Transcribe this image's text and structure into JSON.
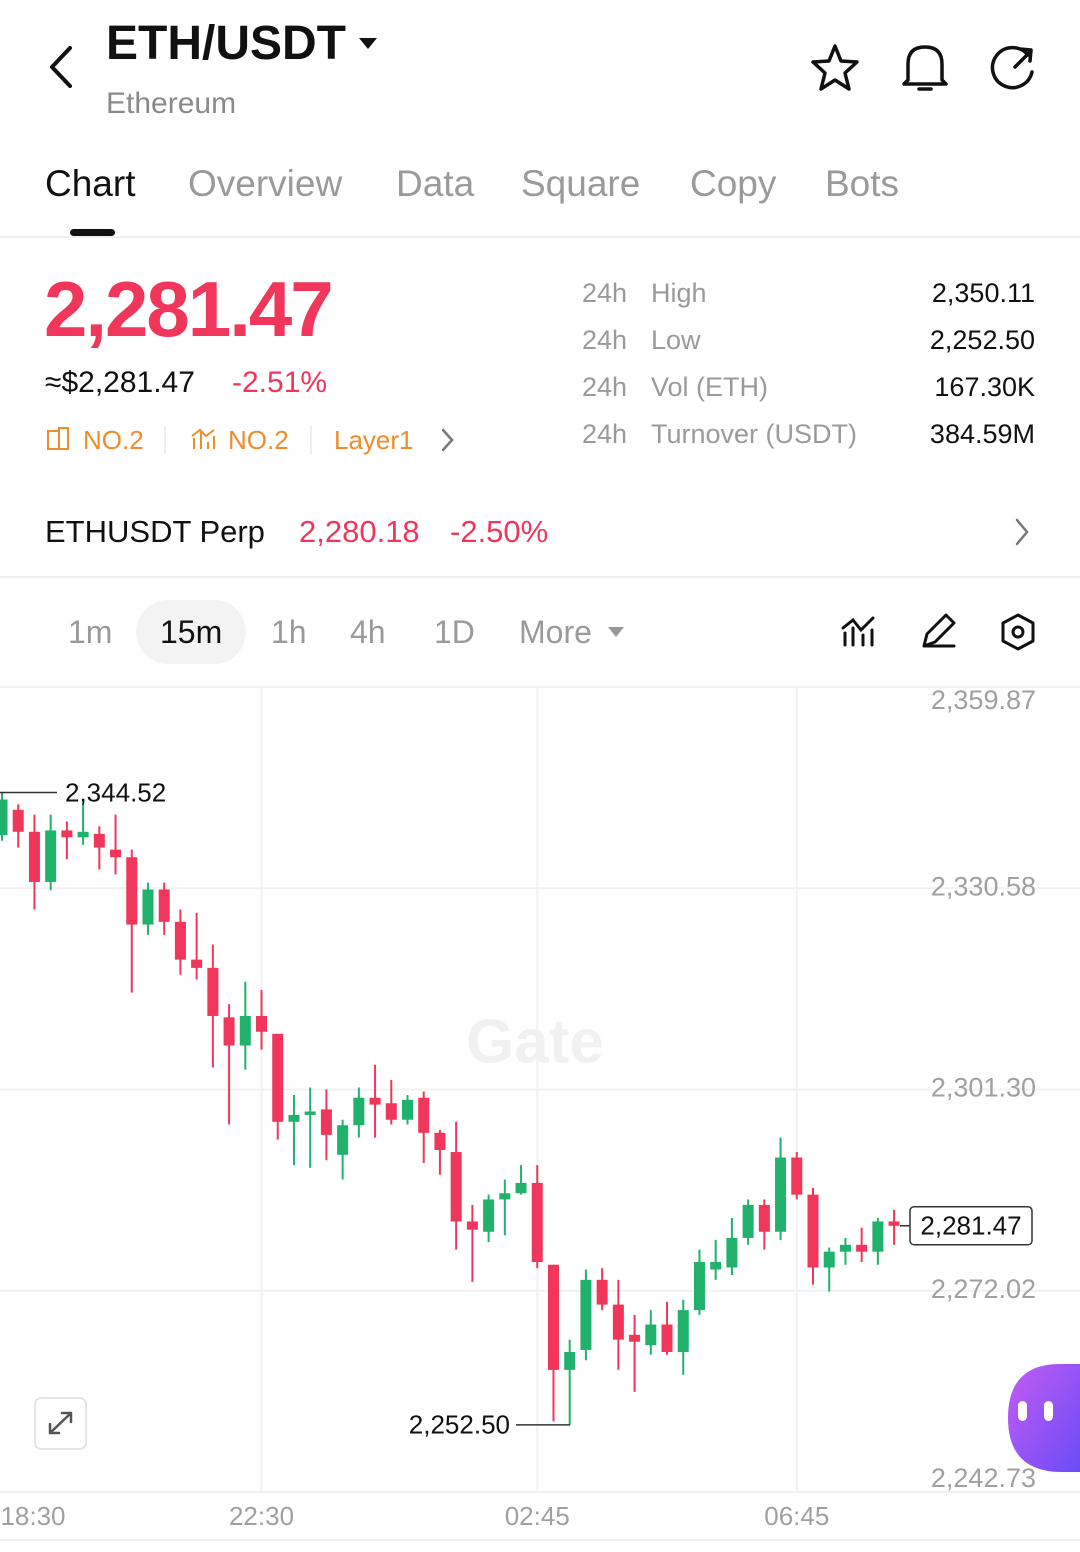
{
  "header": {
    "title": "ETH/USDT",
    "subtitle": "Ethereum"
  },
  "tabs": [
    "Chart",
    "Overview",
    "Data",
    "Square",
    "Copy",
    "Bots"
  ],
  "price": {
    "last": "2,281.47",
    "approx": "≈$2,281.47",
    "change": "-2.51%",
    "tags": [
      "NO.2",
      "NO.2",
      "Layer1"
    ]
  },
  "stats": [
    {
      "period": "24h",
      "label": "High",
      "value": "2,350.11"
    },
    {
      "period": "24h",
      "label": "Low",
      "value": "2,252.50"
    },
    {
      "period": "24h",
      "label": "Vol (ETH)",
      "value": "167.30K"
    },
    {
      "period": "24h",
      "label": "Turnover (USDT)",
      "value": "384.59M"
    }
  ],
  "perp": {
    "name": "ETHUSDT Perp",
    "price": "2,280.18",
    "change": "-2.50%"
  },
  "intervals": [
    "1m",
    "15m",
    "1h",
    "4h",
    "1D",
    "More"
  ],
  "chart_data": {
    "type": "candlestick",
    "watermark": "Gate",
    "up_color": "#20b26c",
    "down_color": "#f0365a",
    "grid": true,
    "categories": [
      "18:30",
      null,
      null,
      null,
      null,
      null,
      null,
      null,
      null,
      null,
      null,
      null,
      null,
      null,
      null,
      null,
      "22:30",
      null,
      null,
      null,
      null,
      null,
      null,
      null,
      null,
      null,
      null,
      null,
      null,
      null,
      null,
      null,
      null,
      "02:45",
      null,
      null,
      null,
      null,
      null,
      null,
      null,
      null,
      null,
      null,
      null,
      null,
      null,
      null,
      null,
      "06:45",
      null,
      null,
      null,
      null,
      null,
      null
    ],
    "open": [
      2338.3,
      2342,
      2338.8,
      2331.5,
      2339,
      2338,
      2338.5,
      2336.2,
      2335.1,
      2325.3,
      2330.4,
      2325.7,
      2320.2,
      2319,
      2311.8,
      2307.7,
      2312,
      2309.4,
      2296.6,
      2297.6,
      2298.4,
      2291.8,
      2296.1,
      2300.1,
      2299.3,
      2296.9,
      2300.1,
      2295,
      2292.2,
      2282.1,
      2280.6,
      2285.3,
      2286.2,
      2287.7,
      2275.8,
      2260.5,
      2263.4,
      2273.6,
      2270,
      2265.6,
      2264.1,
      2267.1,
      2263.1,
      2269.2,
      2275.1,
      2275.4,
      2279.7,
      2284.5,
      2280.6,
      2291.4,
      2286,
      2275.4,
      2277.7,
      2278.7,
      2277.7,
      2282.1
    ],
    "high": [
      2344.52,
      2342.8,
      2341.3,
      2341.3,
      2340.3,
      2343.5,
      2339.6,
      2341.3,
      2336.2,
      2331.4,
      2331.4,
      2327.5,
      2327,
      2322.4,
      2313.7,
      2317,
      2315.8,
      2309.4,
      2300.5,
      2301.6,
      2301.3,
      2296.9,
      2301.6,
      2304.9,
      2302.7,
      2300.5,
      2301,
      2295.4,
      2296.6,
      2284.5,
      2286,
      2288.2,
      2290.3,
      2290.3,
      2275.8,
      2264.9,
      2275.1,
      2275.3,
      2273.6,
      2268.5,
      2269.2,
      2270.4,
      2270.7,
      2278,
      2279.4,
      2282.6,
      2285.3,
      2285.3,
      2294.3,
      2292.2,
      2287,
      2278.3,
      2279.7,
      2281.2,
      2282.6,
      2283.8
    ],
    "low": [
      2337.5,
      2336.5,
      2327.5,
      2330.3,
      2334.8,
      2336.9,
      2333.3,
      2332.6,
      2315.4,
      2323.8,
      2323.8,
      2318,
      2317.3,
      2304.5,
      2296.2,
      2304.2,
      2307.1,
      2294,
      2290.3,
      2289.9,
      2291,
      2288.2,
      2294.3,
      2294.3,
      2296.2,
      2296.2,
      2290.6,
      2288.9,
      2278,
      2273.3,
      2279.1,
      2280.1,
      2286,
      2275.3,
      2253,
      2252.5,
      2261.9,
      2269.2,
      2260.5,
      2257.3,
      2262.7,
      2262.7,
      2259.8,
      2268.5,
      2273.6,
      2274.3,
      2278.7,
      2278,
      2279.4,
      2285.3,
      2272.9,
      2271.9,
      2275.8,
      2276.2,
      2275.8,
      2278.7
    ],
    "close": [
      2343.5,
      2338.8,
      2331.5,
      2339,
      2338,
      2338.8,
      2336.5,
      2335.1,
      2325.3,
      2330.4,
      2325.7,
      2320.2,
      2319,
      2312,
      2307.7,
      2312,
      2309.7,
      2296.6,
      2297.6,
      2298.1,
      2294.7,
      2296.1,
      2300.1,
      2299.1,
      2296.9,
      2299.8,
      2295,
      2292.5,
      2282.1,
      2280.9,
      2285.3,
      2286.2,
      2287.7,
      2276.2,
      2260.5,
      2263.1,
      2273.6,
      2270,
      2264.9,
      2264.6,
      2267.1,
      2263.1,
      2269.2,
      2276.2,
      2276.2,
      2279.7,
      2284.5,
      2280.6,
      2291.4,
      2286,
      2275.4,
      2277.7,
      2278.7,
      2277.7,
      2282.1,
      2281.47
    ],
    "ylim": [
      2242.73,
      2359.87
    ],
    "yticks": [
      {
        "value": 2359.87,
        "label": "2,359.87"
      },
      {
        "value": 2330.58,
        "label": "2,330.58"
      },
      {
        "value": 2301.3,
        "label": "2,301.30"
      },
      {
        "value": 2272.02,
        "label": "2,272.02"
      },
      {
        "value": 2242.73,
        "label": "2,242.73"
      }
    ],
    "high_marker": {
      "value": 2344.52,
      "label": "2,344.52"
    },
    "low_marker": {
      "value": 2252.5,
      "label": "2,252.50"
    },
    "last_marker": {
      "value": 2281.47,
      "label": "2,281.47"
    }
  }
}
